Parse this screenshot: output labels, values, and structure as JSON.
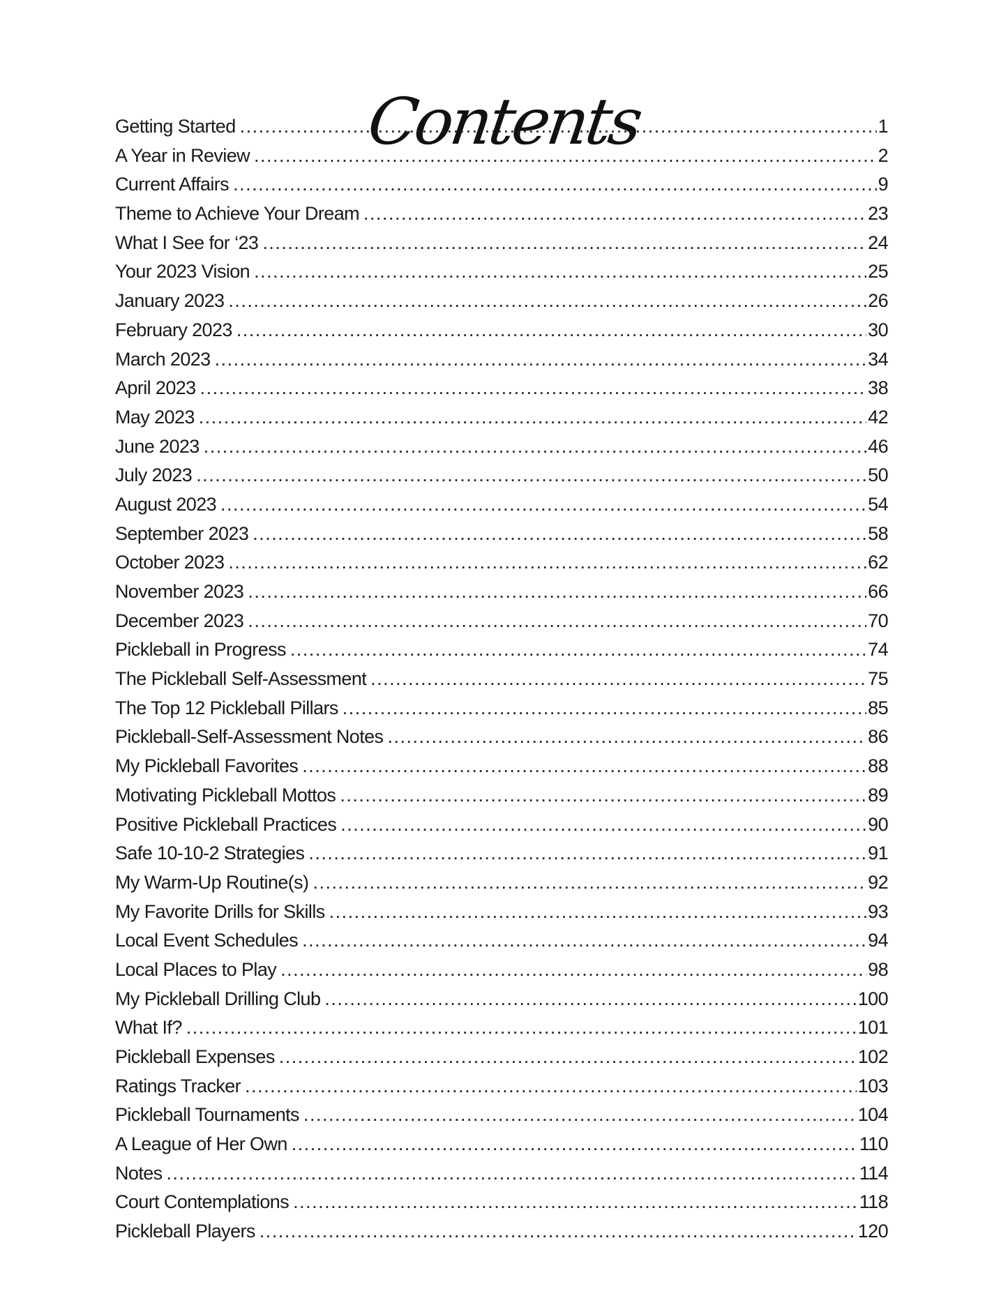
{
  "title": "Contents",
  "entries": [
    {
      "label": "Getting Started",
      "page": "1"
    },
    {
      "label": "A Year in Review",
      "page": "2"
    },
    {
      "label": "Current Affairs",
      "page": "9"
    },
    {
      "label": "Theme to Achieve Your Dream",
      "page": "23"
    },
    {
      "label": "What I See for ‘23",
      "page": "24"
    },
    {
      "label": "Your 2023 Vision",
      "page": "25"
    },
    {
      "label": "January 2023",
      "page": "26"
    },
    {
      "label": "February 2023",
      "page": "30"
    },
    {
      "label": "March 2023",
      "page": "34"
    },
    {
      "label": "April 2023",
      "page": "38"
    },
    {
      "label": "May 2023",
      "page": "42"
    },
    {
      "label": "June 2023",
      "page": "46"
    },
    {
      "label": "July 2023",
      "page": "50"
    },
    {
      "label": "August 2023",
      "page": "54"
    },
    {
      "label": "September 2023",
      "page": "58"
    },
    {
      "label": "October 2023",
      "page": "62"
    },
    {
      "label": "November 2023",
      "page": "66"
    },
    {
      "label": "December 2023",
      "page": "70"
    },
    {
      "label": "Pickleball in Progress",
      "page": "74"
    },
    {
      "label": "The Pickleball Self-Assessment",
      "page": "75"
    },
    {
      "label": "The Top 12 Pickleball Pillars",
      "page": "85"
    },
    {
      "label": "Pickleball-Self-Assessment Notes",
      "page": "86"
    },
    {
      "label": "My Pickleball Favorites",
      "page": "88"
    },
    {
      "label": "Motivating Pickleball Mottos",
      "page": "89"
    },
    {
      "label": "Positive Pickleball Practices",
      "page": "90"
    },
    {
      "label": "Safe 10-10-2 Strategies",
      "page": "91"
    },
    {
      "label": "My Warm-Up Routine(s)",
      "page": "92"
    },
    {
      "label": "My Favorite Drills for Skills",
      "page": "93"
    },
    {
      "label": "Local Event Schedules",
      "page": "94"
    },
    {
      "label": "Local Places to Play",
      "page": "98"
    },
    {
      "label": "My Pickleball Drilling Club",
      "page": "100"
    },
    {
      "label": "What If?",
      "page": "101"
    },
    {
      "label": "Pickleball Expenses",
      "page": "102"
    },
    {
      "label": "Ratings Tracker",
      "page": "103"
    },
    {
      "label": "Pickleball Tournaments",
      "page": "104"
    },
    {
      "label": "A League of Her Own",
      "page": "110"
    },
    {
      "label": "Notes",
      "page": "114"
    },
    {
      "label": "Court Contemplations",
      "page": "118"
    },
    {
      "label": "Pickleball Players",
      "page": "120"
    }
  ]
}
